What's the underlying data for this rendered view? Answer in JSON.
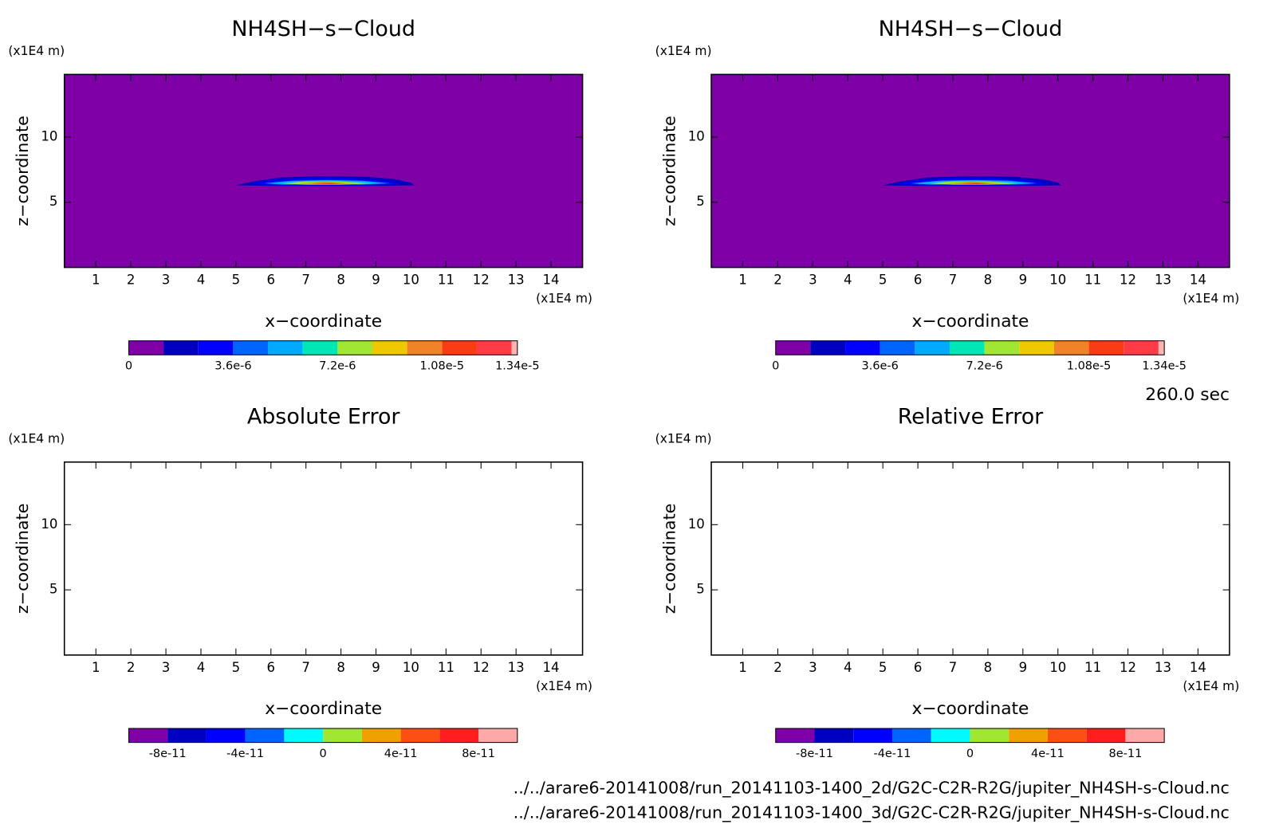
{
  "chart_data": [
    {
      "type": "contour",
      "title": "NH4SH−s−Cloud",
      "xlabel": "x−coordinate",
      "ylabel": "z−coordinate",
      "x_unit": "(x1E4 m)",
      "y_unit": "(x1E4 m)",
      "xlim": [
        0.1,
        14.9
      ],
      "ylim": [
        0,
        14.8
      ],
      "xticks": [
        1,
        2,
        3,
        4,
        5,
        6,
        7,
        8,
        9,
        10,
        11,
        12,
        13,
        14
      ],
      "yticks": [
        5,
        10
      ],
      "colorbar": {
        "levels": [
          0,
          1.2e-06,
          2.4e-06,
          3.6e-06,
          4.8e-06,
          6e-06,
          7.2e-06,
          8.4e-06,
          9.6e-06,
          1.08e-05,
          1.2e-05,
          1.32e-05,
          1.34e-05
        ],
        "colors": [
          "#8000a8",
          "#0000c0",
          "#0000ff",
          "#0064ff",
          "#00aaff",
          "#00e6b4",
          "#a0e632",
          "#f0c800",
          "#f08228",
          "#fa3c14",
          "#ff3c46",
          "#ffb4b4"
        ],
        "ticks": [
          0,
          {
            "value": 3.6e-06,
            "label": "3.6e-6"
          },
          {
            "value": 7.2e-06,
            "label": "7.2e-6"
          },
          {
            "value": 1.08e-05,
            "label": "1.08e-5"
          },
          {
            "value": 1.34e-05,
            "label": "1.34e-5"
          }
        ]
      },
      "contours": [
        {
          "value": 0,
          "x": [
            0.1,
            14.9,
            14.9,
            0.1
          ],
          "y": [
            0,
            0,
            14.8,
            14.8
          ]
        },
        {
          "value": 1.2e-06,
          "x": [
            5.0,
            5.5,
            6.3,
            7.5,
            8.8,
            9.6,
            10.0,
            10.1,
            9.0,
            7.5,
            6.0,
            5.0
          ],
          "y": [
            6.3,
            6.6,
            6.9,
            7.0,
            6.95,
            6.75,
            6.5,
            6.3,
            6.25,
            6.25,
            6.25,
            6.3
          ]
        },
        {
          "value": 2.4e-06,
          "x": [
            5.4,
            6.0,
            7.0,
            8.2,
            9.2,
            9.7,
            8.8,
            7.5,
            6.2,
            5.4
          ],
          "y": [
            6.4,
            6.7,
            6.85,
            6.85,
            6.65,
            6.4,
            6.3,
            6.3,
            6.3,
            6.4
          ]
        },
        {
          "value": 4.8e-06,
          "x": [
            5.8,
            6.6,
            7.6,
            8.6,
            9.4,
            8.6,
            7.5,
            6.4,
            5.8
          ],
          "y": [
            6.45,
            6.65,
            6.7,
            6.65,
            6.45,
            6.35,
            6.35,
            6.35,
            6.45
          ]
        },
        {
          "value": 7.2e-06,
          "x": [
            6.3,
            7.0,
            8.0,
            8.9,
            8.0,
            7.0,
            6.3
          ],
          "y": [
            6.45,
            6.6,
            6.6,
            6.45,
            6.35,
            6.35,
            6.45
          ]
        },
        {
          "value": 9.6e-06,
          "x": [
            6.8,
            7.5,
            8.4,
            7.5,
            6.8
          ],
          "y": [
            6.45,
            6.55,
            6.45,
            6.38,
            6.45
          ]
        },
        {
          "value": 1.08e-05,
          "x": [
            7.2,
            7.7,
            8.1,
            7.7,
            7.2
          ],
          "y": [
            6.45,
            6.5,
            6.45,
            6.4,
            6.45
          ]
        }
      ]
    },
    {
      "type": "contour",
      "title": "NH4SH−s−Cloud",
      "xlabel": "x−coordinate",
      "ylabel": "z−coordinate",
      "x_unit": "(x1E4 m)",
      "y_unit": "(x1E4 m)",
      "xlim": [
        0.1,
        14.9
      ],
      "ylim": [
        0,
        14.8
      ],
      "xticks": [
        1,
        2,
        3,
        4,
        5,
        6,
        7,
        8,
        9,
        10,
        11,
        12,
        13,
        14
      ],
      "yticks": [
        5,
        10
      ],
      "colorbar": {
        "levels": [
          0,
          1.2e-06,
          2.4e-06,
          3.6e-06,
          4.8e-06,
          6e-06,
          7.2e-06,
          8.4e-06,
          9.6e-06,
          1.08e-05,
          1.2e-05,
          1.32e-05,
          1.34e-05
        ],
        "colors": [
          "#8000a8",
          "#0000c0",
          "#0000ff",
          "#0064ff",
          "#00aaff",
          "#00e6b4",
          "#a0e632",
          "#f0c800",
          "#f08228",
          "#fa3c14",
          "#ff3c46",
          "#ffb4b4"
        ],
        "ticks": [
          0,
          {
            "value": 3.6e-06,
            "label": "3.6e-6"
          },
          {
            "value": 7.2e-06,
            "label": "7.2e-6"
          },
          {
            "value": 1.08e-05,
            "label": "1.08e-5"
          },
          {
            "value": 1.34e-05,
            "label": "1.34e-5"
          }
        ]
      },
      "contours": [
        {
          "value": 0,
          "x": [
            0.1,
            14.9,
            14.9,
            0.1
          ],
          "y": [
            0,
            0,
            14.8,
            14.8
          ]
        },
        {
          "value": 1.2e-06,
          "x": [
            5.0,
            5.5,
            6.3,
            7.5,
            8.8,
            9.6,
            10.0,
            10.1,
            9.0,
            7.5,
            6.0,
            5.0
          ],
          "y": [
            6.3,
            6.6,
            6.9,
            7.0,
            6.95,
            6.75,
            6.5,
            6.3,
            6.25,
            6.25,
            6.25,
            6.3
          ]
        },
        {
          "value": 2.4e-06,
          "x": [
            5.4,
            6.0,
            7.0,
            8.2,
            9.2,
            9.7,
            8.8,
            7.5,
            6.2,
            5.4
          ],
          "y": [
            6.4,
            6.7,
            6.85,
            6.85,
            6.65,
            6.4,
            6.3,
            6.3,
            6.3,
            6.4
          ]
        },
        {
          "value": 4.8e-06,
          "x": [
            5.8,
            6.6,
            7.6,
            8.6,
            9.4,
            8.6,
            7.5,
            6.4,
            5.8
          ],
          "y": [
            6.45,
            6.65,
            6.7,
            6.65,
            6.45,
            6.35,
            6.35,
            6.35,
            6.45
          ]
        },
        {
          "value": 7.2e-06,
          "x": [
            6.3,
            7.0,
            8.0,
            8.9,
            8.0,
            7.0,
            6.3
          ],
          "y": [
            6.45,
            6.6,
            6.6,
            6.45,
            6.35,
            6.35,
            6.45
          ]
        },
        {
          "value": 9.6e-06,
          "x": [
            6.8,
            7.5,
            8.4,
            7.5,
            6.8
          ],
          "y": [
            6.45,
            6.55,
            6.45,
            6.38,
            6.45
          ]
        },
        {
          "value": 1.08e-05,
          "x": [
            7.2,
            7.7,
            8.1,
            7.7,
            7.2
          ],
          "y": [
            6.45,
            6.5,
            6.45,
            6.4,
            6.45
          ]
        }
      ]
    },
    {
      "type": "contour",
      "title": "Absolute Error",
      "xlabel": "x−coordinate",
      "ylabel": "z−coordinate",
      "x_unit": "(x1E4 m)",
      "y_unit": "(x1E4 m)",
      "xlim": [
        0.1,
        14.9
      ],
      "ylim": [
        0,
        14.8
      ],
      "xticks": [
        1,
        2,
        3,
        4,
        5,
        6,
        7,
        8,
        9,
        10,
        11,
        12,
        13,
        14
      ],
      "yticks": [
        5,
        10
      ],
      "colorbar": {
        "levels": [
          -1e-10,
          -8e-11,
          -6e-11,
          -4e-11,
          -2e-11,
          0,
          2e-11,
          4e-11,
          6e-11,
          8e-11,
          1e-10
        ],
        "colors": [
          "#8000a8",
          "#0000c0",
          "#0000ff",
          "#0064ff",
          "#00faff",
          "#a0e632",
          "#f0a000",
          "#fa5014",
          "#ff1e1e",
          "#ffa8a8"
        ],
        "ticks": [
          {
            "value": -8e-11,
            "label": "-8e-11"
          },
          {
            "value": -4e-11,
            "label": "-4e-11"
          },
          0,
          {
            "value": 4e-11,
            "label": "4e-11"
          },
          {
            "value": 8e-11,
            "label": "8e-11"
          }
        ]
      },
      "contours": []
    },
    {
      "type": "contour",
      "title": "Relative Error",
      "xlabel": "x−coordinate",
      "ylabel": "z−coordinate",
      "x_unit": "(x1E4 m)",
      "y_unit": "(x1E4 m)",
      "xlim": [
        0.1,
        14.9
      ],
      "ylim": [
        0,
        14.8
      ],
      "xticks": [
        1,
        2,
        3,
        4,
        5,
        6,
        7,
        8,
        9,
        10,
        11,
        12,
        13,
        14
      ],
      "yticks": [
        5,
        10
      ],
      "colorbar": {
        "levels": [
          -1e-10,
          -8e-11,
          -6e-11,
          -4e-11,
          -2e-11,
          0,
          2e-11,
          4e-11,
          6e-11,
          8e-11,
          1e-10
        ],
        "colors": [
          "#8000a8",
          "#0000c0",
          "#0000ff",
          "#0064ff",
          "#00faff",
          "#a0e632",
          "#f0a000",
          "#fa5014",
          "#ff1e1e",
          "#ffa8a8"
        ],
        "ticks": [
          {
            "value": -8e-11,
            "label": "-8e-11"
          },
          {
            "value": -4e-11,
            "label": "-4e-11"
          },
          0,
          {
            "value": 4e-11,
            "label": "4e-11"
          },
          {
            "value": 8e-11,
            "label": "8e-11"
          }
        ]
      },
      "contours": []
    }
  ],
  "annotations": {
    "time": "260.0 sec",
    "files": [
      "../../arare6-20141008/run_20141103-1400_2d/G2C-C2R-R2G/jupiter_NH4SH-s-Cloud.nc",
      "../../arare6-20141008/run_20141103-1400_3d/G2C-C2R-R2G/jupiter_NH4SH-s-Cloud.nc"
    ]
  }
}
